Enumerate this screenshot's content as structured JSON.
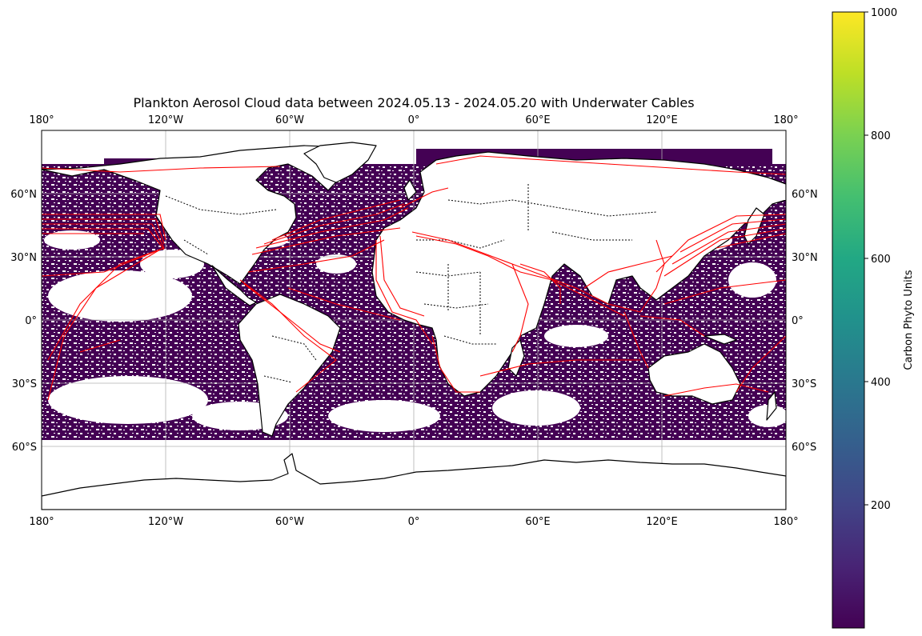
{
  "chart_data": {
    "type": "heatmap",
    "title": "Plankton Aerosol Cloud data between 2024.05.13 - 2024.05.20 with Underwater Cables",
    "projection": "PlateCarree",
    "xlim": [
      -180,
      180
    ],
    "ylim": [
      -90,
      90
    ],
    "grid": true,
    "x_ticks": [
      {
        "value": -180,
        "label": "180°"
      },
      {
        "value": -120,
        "label": "120°W"
      },
      {
        "value": -60,
        "label": "60°W"
      },
      {
        "value": 0,
        "label": "0°"
      },
      {
        "value": 60,
        "label": "60°E"
      },
      {
        "value": 120,
        "label": "120°E"
      },
      {
        "value": 180,
        "label": "180°"
      }
    ],
    "y_ticks": [
      {
        "value": 60,
        "label": "60°N"
      },
      {
        "value": 30,
        "label": "30°N"
      },
      {
        "value": 0,
        "label": "0°"
      },
      {
        "value": -30,
        "label": "30°S"
      },
      {
        "value": -60,
        "label": "60°S"
      }
    ],
    "colorbar": {
      "label": "Carbon Phyto Units",
      "range": [
        0,
        1000
      ],
      "colormap": "viridis",
      "ticks": [
        200,
        400,
        600,
        800,
        1000
      ]
    },
    "layers": [
      "ocean plankton data field",
      "coastlines",
      "country borders",
      "underwater cables"
    ],
    "cable_color": "#ff0000",
    "data_color": "#440154"
  }
}
